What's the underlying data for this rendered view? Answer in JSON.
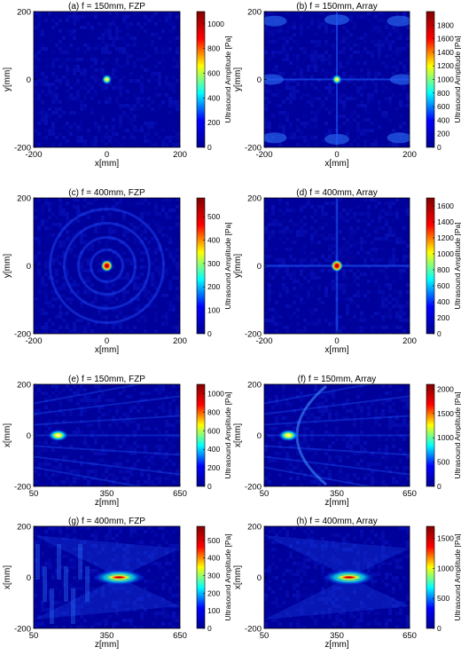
{
  "colorbar_label": "Ultrasound Amplitude [Pa]",
  "colormap": [
    "#00008f",
    "#0000ff",
    "#00ffff",
    "#ffff00",
    "#ff0000",
    "#800000"
  ],
  "background_color": "#00009a",
  "chart_data": [
    {
      "type": "heatmap",
      "title": "(a) f = 150mm, FZP",
      "xlabel": "x[mm]",
      "ylabel": "y[mm]",
      "xlim": [
        -200,
        200
      ],
      "ylim": [
        -200,
        200
      ],
      "xticks": [
        "-200",
        "0",
        "200"
      ],
      "yticks": [
        "200",
        "0",
        "-200"
      ],
      "colorbar": {
        "min": 0,
        "max": 1100,
        "ticks": [
          "1000",
          "800",
          "600",
          "400",
          "200",
          "0"
        ],
        "tick_values": [
          1000,
          800,
          600,
          400,
          200,
          0
        ]
      },
      "focus": {
        "x": 0,
        "y": 0,
        "peak": 1100
      },
      "pattern": "speckle"
    },
    {
      "type": "heatmap",
      "title": "(b) f = 150mm, Array",
      "xlabel": "x[mm]",
      "ylabel": "y[mm]",
      "xlim": [
        -200,
        200
      ],
      "ylim": [
        -200,
        200
      ],
      "xticks": [
        "-200",
        "0",
        "200"
      ],
      "yticks": [
        "200",
        "0",
        "-200"
      ],
      "colorbar": {
        "min": 0,
        "max": 2000,
        "ticks": [
          "1800",
          "1600",
          "1400",
          "1200",
          "1000",
          "800",
          "600",
          "400",
          "200",
          "0"
        ],
        "tick_values": [
          1800,
          1600,
          1400,
          1200,
          1000,
          800,
          600,
          400,
          200,
          0
        ]
      },
      "focus": {
        "x": 0,
        "y": 0,
        "peak": 2000
      },
      "pattern": "grating"
    },
    {
      "type": "heatmap",
      "title": "(c) f = 400mm, FZP",
      "xlabel": "x[mm]",
      "ylabel": "y[mm]",
      "xlim": [
        -200,
        200
      ],
      "ylim": [
        -200,
        200
      ],
      "xticks": [
        "-200",
        "0",
        "200"
      ],
      "yticks": [
        "200",
        "0",
        "-200"
      ],
      "colorbar": {
        "min": 0,
        "max": 580,
        "ticks": [
          "500",
          "400",
          "300",
          "200",
          "100",
          "0"
        ],
        "tick_values": [
          500,
          400,
          300,
          200,
          100,
          0
        ]
      },
      "focus": {
        "x": 0,
        "y": 0,
        "peak": 580
      },
      "pattern": "rings"
    },
    {
      "type": "heatmap",
      "title": "(d) f = 400mm, Array",
      "xlabel": "x[mm]",
      "ylabel": "y[mm]",
      "xlim": [
        -200,
        200
      ],
      "ylim": [
        -200,
        200
      ],
      "xticks": [
        "-200",
        "0",
        "200"
      ],
      "yticks": [
        "200",
        "0",
        "-200"
      ],
      "colorbar": {
        "min": 0,
        "max": 1700,
        "ticks": [
          "1600",
          "1400",
          "1200",
          "1000",
          "800",
          "600",
          "400",
          "200",
          "0"
        ],
        "tick_values": [
          1600,
          1400,
          1200,
          1000,
          800,
          600,
          400,
          200,
          0
        ]
      },
      "focus": {
        "x": 0,
        "y": 0,
        "peak": 1700
      },
      "pattern": "cross"
    },
    {
      "type": "heatmap",
      "title": "(e) f = 150mm, FZP",
      "xlabel": "z[mm]",
      "ylabel": "x[mm]",
      "xlim": [
        50,
        650
      ],
      "ylim": [
        -200,
        200
      ],
      "xticks": [
        "50",
        "350",
        "650"
      ],
      "yticks": [
        "200",
        "0",
        "-200"
      ],
      "colorbar": {
        "min": 0,
        "max": 1100,
        "ticks": [
          "1000",
          "800",
          "600",
          "400",
          "200",
          "0"
        ],
        "tick_values": [
          1000,
          800,
          600,
          400,
          200,
          0
        ]
      },
      "focus": {
        "x": 150,
        "y": 0,
        "peak": 1100
      },
      "pattern": "axial-short"
    },
    {
      "type": "heatmap",
      "title": "(f) f = 150mm, Array",
      "xlabel": "z[mm]",
      "ylabel": "x[mm]",
      "xlim": [
        50,
        650
      ],
      "ylim": [
        -200,
        200
      ],
      "xticks": [
        "50",
        "350",
        "650"
      ],
      "yticks": [
        "200",
        "0",
        "-200"
      ],
      "colorbar": {
        "min": 0,
        "max": 2100,
        "ticks": [
          "2000",
          "1500",
          "1000",
          "500",
          "0"
        ],
        "tick_values": [
          2000,
          1500,
          1000,
          500,
          0
        ]
      },
      "focus": {
        "x": 150,
        "y": 0,
        "peak": 2100
      },
      "pattern": "axial-arc"
    },
    {
      "type": "heatmap",
      "title": "(g) f = 400mm, FZP",
      "xlabel": "z[mm]",
      "ylabel": "x[mm]",
      "xlim": [
        50,
        650
      ],
      "ylim": [
        -200,
        200
      ],
      "xticks": [
        "50",
        "350",
        "650"
      ],
      "yticks": [
        "200",
        "0",
        "-200"
      ],
      "colorbar": {
        "min": 0,
        "max": 580,
        "ticks": [
          "500",
          "400",
          "300",
          "200",
          "100",
          "0"
        ],
        "tick_values": [
          500,
          400,
          300,
          200,
          100,
          0
        ]
      },
      "focus": {
        "x": 400,
        "y": 0,
        "peak": 580
      },
      "pattern": "axial-long"
    },
    {
      "type": "heatmap",
      "title": "(h) f = 400mm, Array",
      "xlabel": "z[mm]",
      "ylabel": "x[mm]",
      "xlim": [
        50,
        650
      ],
      "ylim": [
        -200,
        200
      ],
      "xticks": [
        "50",
        "350",
        "650"
      ],
      "yticks": [
        "200",
        "0",
        "-200"
      ],
      "colorbar": {
        "min": 0,
        "max": 1700,
        "ticks": [
          "1500",
          "1000",
          "500",
          "0"
        ],
        "tick_values": [
          1500,
          1000,
          500,
          0
        ]
      },
      "focus": {
        "x": 400,
        "y": 0,
        "peak": 1700
      },
      "pattern": "axial-wedge"
    }
  ]
}
